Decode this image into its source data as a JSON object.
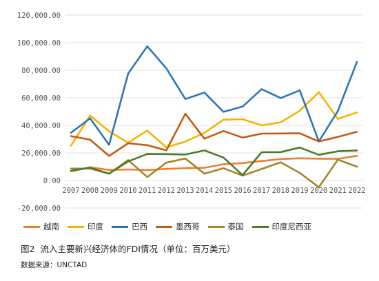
{
  "chart_data": {
    "type": "line",
    "x": [
      "2007",
      "2008",
      "2009",
      "2010",
      "2011",
      "2012",
      "2013",
      "2014",
      "2015",
      "2016",
      "2017",
      "2018",
      "2019",
      "2020",
      "2021",
      "2022"
    ],
    "yticks": [
      "-20,000.00",
      "0.00",
      "20,000.00",
      "40,000.00",
      "60,000.00",
      "80,000.00",
      "100,000.00",
      "120,000.00"
    ],
    "ylim": [
      -20000,
      120000
    ],
    "grid": true,
    "legend_position": "bottom",
    "series": [
      {
        "name": "越南",
        "color": "#ED7D31",
        "values": [
          6700,
          9600,
          7600,
          8000,
          7500,
          8400,
          8900,
          9200,
          11800,
          12600,
          14100,
          15500,
          16100,
          15800,
          15700,
          17900
        ]
      },
      {
        "name": "印度",
        "color": "#F4B400",
        "values": [
          25300,
          47100,
          35700,
          27400,
          36200,
          24000,
          28200,
          34600,
          44100,
          44500,
          40000,
          42200,
          50600,
          64100,
          44700,
          49400
        ]
      },
      {
        "name": "巴西",
        "color": "#2E75B6",
        "values": [
          34600,
          45100,
          25900,
          77600,
          97400,
          81400,
          59100,
          63800,
          49800,
          53600,
          66300,
          59800,
          65400,
          28300,
          50400,
          86100
        ]
      },
      {
        "name": "墨西哥",
        "color": "#C55A11",
        "values": [
          32200,
          29600,
          17800,
          27000,
          25600,
          21800,
          48400,
          30300,
          35900,
          31100,
          34000,
          34100,
          34200,
          28300,
          31600,
          35300
        ]
      },
      {
        "name": "泰国",
        "color": "#A5862A",
        "values": [
          8600,
          8600,
          5000,
          14800,
          2500,
          12900,
          15900,
          4900,
          8900,
          3500,
          8300,
          13200,
          5500,
          -4900,
          15100,
          10000
        ]
      },
      {
        "name": "印度尼西亚",
        "color": "#4E7A2C",
        "values": [
          6900,
          9300,
          4900,
          13800,
          19200,
          19100,
          18800,
          21800,
          16600,
          3900,
          20500,
          20600,
          23900,
          18600,
          21200,
          21700
        ]
      }
    ]
  },
  "caption": {
    "figure_number": "图2",
    "title": "流入主要新兴经济体的FDI情况（单位：百万美元）"
  },
  "source": "数据来源：UNCTAD"
}
